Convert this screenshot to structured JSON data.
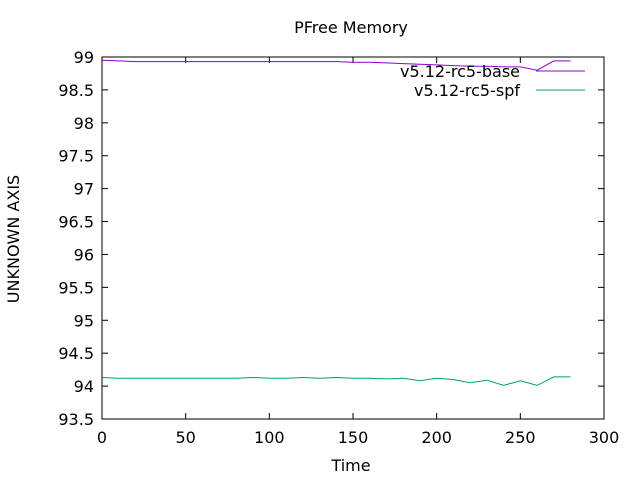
{
  "chart_data": {
    "type": "line",
    "title": "PFree Memory",
    "xlabel": "Time",
    "ylabel": "UNKNOWN AXIS",
    "xlim": [
      0,
      300
    ],
    "ylim": [
      93.5,
      99
    ],
    "xticks": [
      0,
      50,
      100,
      150,
      200,
      250,
      300
    ],
    "yticks": [
      93.5,
      94,
      94.5,
      95,
      95.5,
      96,
      96.5,
      97,
      97.5,
      98,
      98.5,
      99
    ],
    "grid": false,
    "legend_position": "top-right",
    "series": [
      {
        "name": "v5.12-rc5-base",
        "color": "#9400d3",
        "x": [
          0,
          10,
          20,
          30,
          40,
          50,
          60,
          70,
          80,
          90,
          100,
          110,
          120,
          130,
          140,
          150,
          160,
          170,
          180,
          190,
          200,
          210,
          220,
          230,
          240,
          250,
          260,
          270,
          280
        ],
        "y": [
          98.95,
          98.94,
          98.93,
          98.93,
          98.93,
          98.93,
          98.93,
          98.93,
          98.93,
          98.93,
          98.93,
          98.93,
          98.93,
          98.93,
          98.93,
          98.92,
          98.92,
          98.91,
          98.9,
          98.89,
          98.88,
          98.87,
          98.86,
          98.86,
          98.85,
          98.85,
          98.8,
          98.94,
          98.94
        ]
      },
      {
        "name": "v5.12-rc5-spf",
        "color": "#009e73",
        "x": [
          0,
          10,
          20,
          30,
          40,
          50,
          60,
          70,
          80,
          90,
          100,
          110,
          120,
          130,
          140,
          150,
          160,
          170,
          180,
          190,
          200,
          210,
          220,
          230,
          240,
          250,
          260,
          270,
          280
        ],
        "y": [
          94.13,
          94.12,
          94.12,
          94.12,
          94.12,
          94.12,
          94.12,
          94.12,
          94.12,
          94.13,
          94.12,
          94.12,
          94.13,
          94.12,
          94.13,
          94.12,
          94.12,
          94.11,
          94.12,
          94.08,
          94.12,
          94.1,
          94.05,
          94.09,
          94.01,
          94.08,
          94.01,
          94.14,
          94.14
        ]
      }
    ]
  }
}
